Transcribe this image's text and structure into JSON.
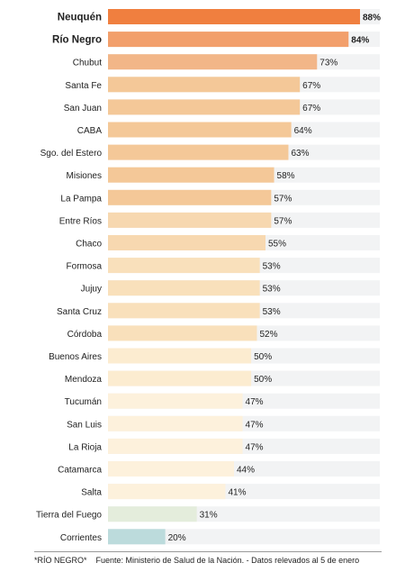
{
  "chart_data": {
    "type": "bar",
    "orientation": "horizontal",
    "categories": [
      "Neuquén",
      "Río Negro",
      "Chubut",
      "Santa Fe",
      "San Juan",
      "CABA",
      "Sgo. del Estero",
      "Misiones",
      "La Pampa",
      "Entre Ríos",
      "Chaco",
      "Formosa",
      "Jujuy",
      "Santa Cruz",
      "Córdoba",
      "Buenos Aires",
      "Mendoza",
      "Tucumán",
      "San Luis",
      "La Rioja",
      "Catamarca",
      "Salta",
      "Tierra del Fuego",
      "Corrientes"
    ],
    "values": [
      88,
      84,
      73,
      67,
      67,
      64,
      63,
      58,
      57,
      57,
      55,
      53,
      53,
      53,
      52,
      50,
      50,
      47,
      47,
      47,
      44,
      41,
      31,
      20
    ],
    "value_labels": [
      "88%",
      "84%",
      "73%",
      "67%",
      "67%",
      "64%",
      "63%",
      "58%",
      "57%",
      "57%",
      "55%",
      "53%",
      "53%",
      "53%",
      "52%",
      "50%",
      "50%",
      "47%",
      "47%",
      "47%",
      "44%",
      "41%",
      "31%",
      "20%"
    ],
    "highlighted": [
      "Neuquén",
      "Río Negro"
    ],
    "colors": [
      "#f07f3f",
      "#f29f6b",
      "#f2b688",
      "#f4c898",
      "#f4c898",
      "#f4c898",
      "#f4c898",
      "#f4c898",
      "#f4c898",
      "#f7d8b0",
      "#f7d8b0",
      "#f9e0bb",
      "#f9e0bb",
      "#f9e0bb",
      "#f9e0bb",
      "#fcecd0",
      "#fcecd0",
      "#fdf1dc",
      "#fdf1dc",
      "#fdf1dc",
      "#fdf1dc",
      "#fdf1dc",
      "#e4eddc",
      "#bcdbdc"
    ],
    "track_color": "#f2f3f4",
    "xlim": [
      0,
      100
    ],
    "title": "",
    "xlabel": "",
    "ylabel": "",
    "grid": false,
    "legend": "none"
  },
  "footer": {
    "note": "*RÍO NEGRO*",
    "source": "Fuente: Ministerio de Salud de la Nación. - Datos relevados al 5 de enero"
  }
}
